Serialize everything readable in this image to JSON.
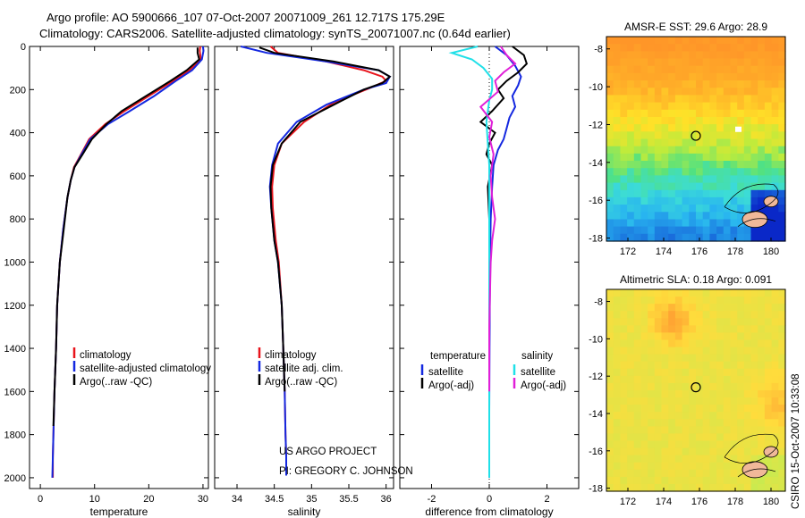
{
  "title_line1": "Argo profile: AO 5900666_107 07-Oct-2007 20071009_261 12.717S 175.29E",
  "title_line2": "Climatology: CARS2006. Satellite-adjusted climatology: synTS_20071007.nc (0.64d earlier)",
  "colors": {
    "climatology": "#e8141c",
    "satellite": "#1428e0",
    "argo": "#000000",
    "sat_sal": "#20e0e8",
    "argo_sal": "#e020d8"
  },
  "chart_data": [
    {
      "id": "temperature",
      "type": "line",
      "xlabel": "temperature",
      "ylabel": "",
      "xlim": [
        -2,
        31
      ],
      "ylim": [
        2050,
        0
      ],
      "xticks": [
        0,
        10,
        20,
        30
      ],
      "yticks": [
        0,
        200,
        400,
        600,
        800,
        1000,
        1200,
        1400,
        1600,
        1800,
        2000
      ],
      "series": [
        {
          "name": "climatology",
          "color": "climatology",
          "x": [
            29.5,
            29.4,
            29.6,
            27.5,
            24.5,
            20.0,
            15.5,
            12.0,
            9.0,
            7.5,
            6.2,
            5.6,
            5.0,
            4.2,
            3.6,
            3.1,
            2.9,
            2.6,
            2.4,
            2.3,
            2.3
          ],
          "y": [
            0,
            20,
            60,
            110,
            160,
            230,
            300,
            360,
            430,
            500,
            560,
            620,
            700,
            850,
            1000,
            1200,
            1400,
            1600,
            1800,
            1900,
            2000
          ]
        },
        {
          "name": "satellite-adjusted climatology",
          "color": "satellite",
          "x": [
            30.0,
            30.1,
            29.8,
            28.0,
            25.0,
            21.0,
            16.5,
            12.5,
            9.2,
            7.6,
            6.3,
            5.6,
            5.0,
            4.2,
            3.6,
            3.1,
            2.9,
            2.6,
            2.4,
            2.3,
            2.2
          ],
          "y": [
            0,
            20,
            60,
            110,
            160,
            230,
            300,
            360,
            430,
            500,
            560,
            620,
            700,
            850,
            1000,
            1200,
            1400,
            1600,
            1800,
            1900,
            2000
          ]
        },
        {
          "name": "Argo(..raw -QC)",
          "color": "argo",
          "x": [
            29.0,
            29.0,
            29.3,
            27.0,
            24.0,
            19.5,
            15.0,
            12.2,
            9.5,
            7.8,
            6.3,
            5.6,
            5.0,
            4.3,
            3.6,
            3.1,
            2.9,
            2.6,
            2.4
          ],
          "y": [
            5,
            30,
            60,
            110,
            160,
            230,
            300,
            360,
            430,
            500,
            560,
            620,
            700,
            850,
            1000,
            1200,
            1400,
            1600,
            1760
          ]
        }
      ],
      "legend": [
        "climatology",
        "satellite-adjusted climatology",
        "Argo(..raw -QC)"
      ]
    },
    {
      "id": "salinity",
      "type": "line",
      "xlabel": "salinity",
      "ylabel": "",
      "xlim": [
        33.7,
        36.1
      ],
      "ylim": [
        2050,
        0
      ],
      "xticks": [
        34,
        34.5,
        35,
        35.5,
        36
      ],
      "yticks": [],
      "series": [
        {
          "name": "climatology",
          "color": "climatology",
          "x": [
            34.45,
            34.55,
            35.2,
            35.7,
            35.95,
            36.0,
            35.8,
            35.3,
            34.9,
            34.6,
            34.5,
            34.47,
            34.48,
            34.52,
            34.56,
            34.6,
            34.62,
            34.64,
            34.65,
            34.66,
            34.66
          ],
          "y": [
            0,
            30,
            70,
            110,
            140,
            160,
            190,
            260,
            350,
            450,
            550,
            650,
            750,
            900,
            1000,
            1200,
            1400,
            1600,
            1800,
            1900,
            1990
          ]
        },
        {
          "name": "satellite adj. clim.",
          "color": "satellite",
          "x": [
            34.05,
            34.4,
            35.2,
            35.9,
            36.05,
            36.0,
            35.7,
            35.2,
            34.8,
            34.55,
            34.47,
            34.44,
            34.46,
            34.5,
            34.55,
            34.6,
            34.62,
            34.64,
            34.65,
            34.66,
            34.66
          ],
          "y": [
            0,
            30,
            70,
            110,
            140,
            170,
            200,
            270,
            350,
            450,
            550,
            650,
            750,
            900,
            1000,
            1200,
            1400,
            1600,
            1800,
            1900,
            1990
          ]
        },
        {
          "name": "Argo(..raw -QC)",
          "color": "argo",
          "x": [
            34.3,
            34.5,
            35.3,
            35.9,
            36.05,
            35.95,
            35.7,
            35.3,
            34.85,
            34.6,
            34.48,
            34.45,
            34.46,
            34.5,
            34.55,
            34.6,
            34.62,
            34.64
          ],
          "y": [
            5,
            30,
            70,
            110,
            140,
            170,
            200,
            270,
            350,
            450,
            550,
            650,
            750,
            900,
            1000,
            1200,
            1400,
            1600
          ]
        }
      ],
      "legend": [
        "climatology",
        "satellite adj. clim.",
        "Argo(..raw -QC)"
      ]
    },
    {
      "id": "difference",
      "type": "line",
      "xlabel": "difference from climatology",
      "ylabel": "",
      "xlim": [
        -3.1,
        3.1
      ],
      "ylim": [
        2050,
        0
      ],
      "xticks": [
        -2,
        0,
        2
      ],
      "yticks": [],
      "series": [
        {
          "name": "temperature satellite",
          "color": "satellite",
          "x": [
            0.2,
            0.6,
            0.9,
            1.1,
            1.0,
            0.8,
            0.9,
            0.7,
            0.6,
            0.5,
            0.3,
            0.15,
            0.1,
            0.05,
            0.03,
            0.02,
            0.01,
            0.0,
            0.0
          ],
          "y": [
            0,
            40,
            90,
            140,
            180,
            230,
            280,
            330,
            380,
            430,
            480,
            550,
            650,
            800,
            1000,
            1200,
            1400,
            1700,
            2000
          ]
        },
        {
          "name": "temperature Argo(-adj)",
          "color": "argo",
          "x": [
            0.8,
            1.2,
            1.3,
            1.0,
            0.6,
            0.3,
            0.5,
            0.1,
            -0.3,
            0.2,
            0.0,
            -0.1,
            0.1,
            -0.05,
            0.0,
            0.0,
            0.0,
            0.0,
            0.0
          ],
          "y": [
            0,
            40,
            80,
            120,
            160,
            200,
            240,
            300,
            350,
            400,
            450,
            500,
            550,
            650,
            800,
            1000,
            1200,
            1500,
            1760
          ]
        },
        {
          "name": "salinity satellite",
          "color": "sat_sal",
          "x": [
            -0.4,
            -1.3,
            -0.6,
            -0.2,
            0.1,
            0.1,
            0.0,
            -0.1,
            -0.05,
            0.0,
            0.0,
            0.0,
            0.0,
            0.0,
            0.0,
            0.0,
            0.0
          ],
          "y": [
            0,
            30,
            60,
            100,
            150,
            200,
            250,
            350,
            450,
            550,
            650,
            800,
            1000,
            1200,
            1400,
            1700,
            2000
          ]
        },
        {
          "name": "salinity Argo(-adj)",
          "color": "argo_sal",
          "x": [
            0.4,
            0.6,
            0.9,
            0.5,
            0.2,
            0.3,
            -0.3,
            0.1,
            0.0,
            0.15,
            0.05,
            0.1,
            0.2,
            0.1,
            0.05,
            0.0,
            0.0
          ],
          "y": [
            0,
            40,
            80,
            120,
            160,
            210,
            280,
            350,
            420,
            500,
            600,
            700,
            800,
            900,
            1000,
            1300,
            1600
          ]
        }
      ],
      "legend_temperature": {
        "heading": "temperature",
        "items": [
          "satellite",
          "Argo(-adj)"
        ]
      },
      "legend_salinity": {
        "heading": "salinity",
        "items": [
          "satellite",
          "Argo(-adj)"
        ]
      }
    }
  ],
  "maps": [
    {
      "title": "AMSR-E SST: 29.6 Argo: 28.9",
      "xticks": [
        "172",
        "174",
        "176",
        "178",
        "180"
      ],
      "yticks": [
        "-8",
        "-10",
        "-12",
        "-14",
        "-16",
        "-18"
      ]
    },
    {
      "title": "Altimetric SLA: 0.18 Argo: 0.091",
      "xticks": [
        "172",
        "174",
        "176",
        "178",
        "180"
      ],
      "yticks": [
        "-8",
        "-10",
        "-12",
        "-14",
        "-16",
        "-18"
      ]
    }
  ],
  "project_line1": "US ARGO PROJECT",
  "project_line2": "PI: GREGORY C. JOHNSON",
  "credit": "CSIRO 15-Oct-2007 10:33:08"
}
